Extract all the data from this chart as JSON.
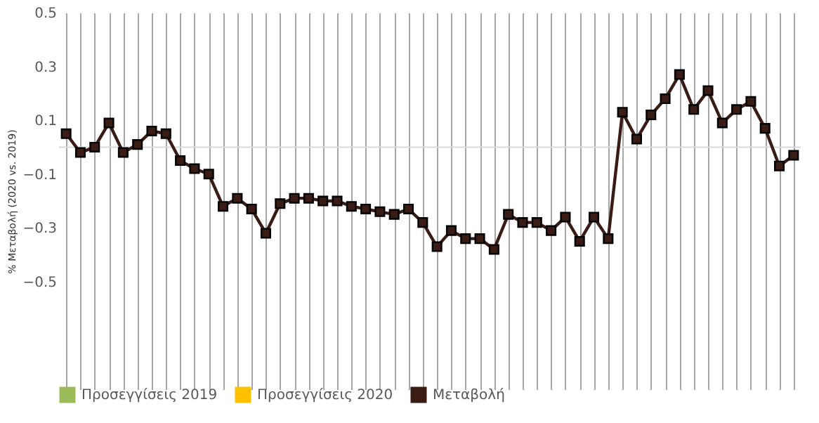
{
  "chart_data": {
    "type": "line",
    "ylabel": "% Μεταβολή (2020 vs. 2019)",
    "categories": [
      null,
      null,
      null,
      null,
      null,
      null,
      null,
      null,
      null,
      null,
      null,
      null,
      null,
      null,
      null,
      null,
      null,
      null,
      null,
      null,
      null,
      null,
      null,
      null,
      null,
      null,
      null,
      null,
      null,
      null,
      null,
      null,
      null,
      null,
      null,
      null,
      null,
      null,
      null,
      null,
      null,
      null,
      null,
      null,
      null,
      null,
      null,
      null,
      null,
      null,
      null,
      null
    ],
    "series": [
      {
        "name": "Προσεγγίσεις 2019",
        "color": "#9bbb59",
        "values": [
          null,
          null,
          null,
          null,
          null,
          null,
          null,
          null,
          null,
          null,
          null,
          null,
          null,
          null,
          null,
          null,
          null,
          null,
          null,
          null,
          null,
          null,
          null,
          null,
          null,
          null,
          null,
          null,
          null,
          null,
          null,
          null,
          null,
          null,
          null,
          null,
          null,
          null,
          null,
          null,
          null,
          null,
          null,
          null,
          null,
          null,
          null,
          null,
          null,
          null,
          null,
          null
        ]
      },
      {
        "name": "Προσεγγίσεις 2020",
        "color": "#ffc000",
        "values": [
          null,
          null,
          null,
          null,
          null,
          null,
          null,
          null,
          null,
          null,
          null,
          null,
          null,
          null,
          null,
          null,
          null,
          null,
          null,
          null,
          null,
          null,
          null,
          null,
          null,
          null,
          null,
          null,
          null,
          null,
          null,
          null,
          null,
          null,
          null,
          null,
          null,
          null,
          null,
          null,
          null,
          null,
          null,
          null,
          null,
          null,
          null,
          null,
          null,
          null,
          null,
          null
        ]
      },
      {
        "name": "Μεταβολή",
        "color": "#3a1c14",
        "values": [
          0.05,
          -0.02,
          0.0,
          0.09,
          -0.02,
          0.01,
          0.06,
          0.05,
          -0.05,
          -0.08,
          -0.1,
          -0.22,
          -0.19,
          -0.23,
          -0.32,
          -0.21,
          -0.19,
          -0.19,
          -0.2,
          -0.2,
          -0.22,
          -0.23,
          -0.24,
          -0.25,
          -0.23,
          -0.28,
          -0.37,
          -0.31,
          -0.34,
          -0.34,
          -0.38,
          -0.25,
          -0.28,
          -0.28,
          -0.31,
          -0.26,
          -0.35,
          -0.26,
          -0.34,
          0.13,
          0.03,
          0.12,
          0.18,
          0.27,
          0.14,
          0.21,
          0.09,
          0.14,
          0.17,
          0.07,
          -0.07,
          -0.03
        ]
      }
    ],
    "ylim": [
      -0.9,
      0.5
    ],
    "yticks": [
      -0.5,
      -0.3,
      -0.1,
      0.1,
      0.3,
      0.5
    ],
    "marker": "square",
    "grid": "x",
    "legend": "bottom"
  }
}
